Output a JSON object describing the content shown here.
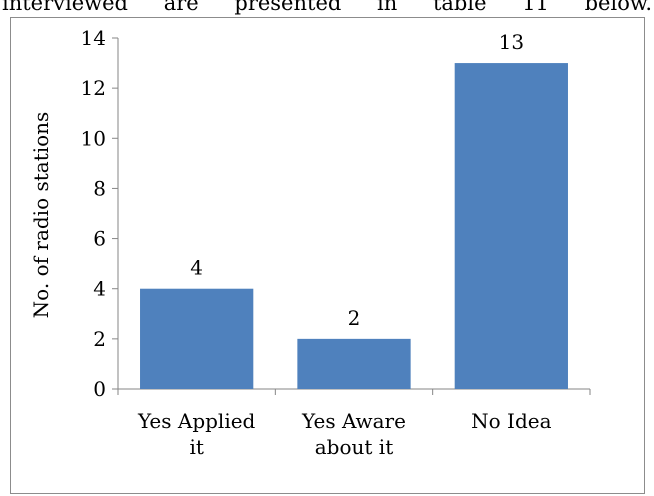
{
  "page": {
    "top_text_words": [
      "interviewed",
      "are",
      "presented",
      "in",
      "table",
      "11",
      "below."
    ]
  },
  "chart_data": {
    "type": "bar",
    "title": "",
    "xlabel": "",
    "ylabel": "No. of radio stations",
    "categories": [
      [
        "Yes Applied",
        "it"
      ],
      [
        "Yes Aware",
        "about it"
      ],
      [
        "No Idea"
      ]
    ],
    "values": [
      4,
      2,
      13
    ],
    "data_labels": [
      "4",
      "2",
      "13"
    ],
    "ylim": [
      0,
      14
    ],
    "yticks": [
      0,
      2,
      4,
      6,
      8,
      10,
      12,
      14
    ],
    "grid": false,
    "legend": "none",
    "bar_color": "#4f81bd",
    "axis_color": "#868686"
  }
}
